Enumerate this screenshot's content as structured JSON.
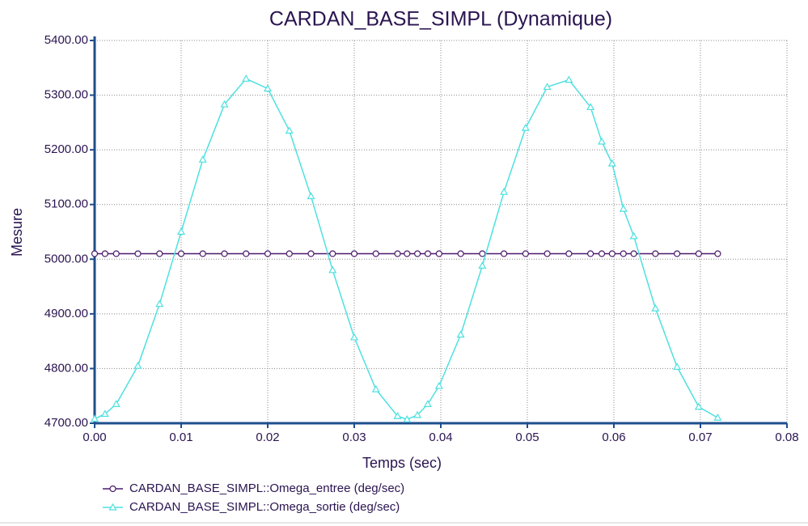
{
  "chart_data": {
    "type": "line",
    "title": "CARDAN_BASE_SIMPL (Dynamique)",
    "x_label": "Temps (sec)",
    "y_label": "Mesure",
    "x": [
      0,
      0.0012,
      0.0025,
      0.005,
      0.0075,
      0.01,
      0.0125,
      0.015,
      0.0175,
      0.02,
      0.0225,
      0.025,
      0.0275,
      0.03,
      0.0325,
      0.035,
      0.0361,
      0.0373,
      0.0385,
      0.0398,
      0.0423,
      0.0448,
      0.0473,
      0.0498,
      0.0523,
      0.0548,
      0.0573,
      0.0586,
      0.0598,
      0.0611,
      0.0623,
      0.0648,
      0.0673,
      0.0698,
      0.072
    ],
    "series": [
      {
        "name": "CARDAN_BASE_SIMPL::Omega_entree (deg/sec)",
        "color": "#4b1a6b",
        "marker": "circle",
        "values": [
          5010,
          5010,
          5010,
          5010,
          5010,
          5010,
          5010,
          5010,
          5010,
          5010,
          5010,
          5010,
          5010,
          5010,
          5010,
          5010,
          5010,
          5010,
          5010,
          5010,
          5010,
          5010,
          5010,
          5010,
          5010,
          5010,
          5010,
          5010,
          5010,
          5010,
          5010,
          5010,
          5010,
          5010,
          5010
        ]
      },
      {
        "name": "CARDAN_BASE_SIMPL::Omega_sortie (deg/sec)",
        "color": "#4fe0e0",
        "marker": "triangle",
        "values": [
          4708,
          4717,
          4735,
          4805,
          4918,
          5050,
          5182,
          5283,
          5330,
          5312,
          5235,
          5115,
          4980,
          4857,
          4762,
          4713,
          4707,
          4715,
          4735,
          4768,
          4862,
          4988,
          5123,
          5240,
          5315,
          5328,
          5278,
          5215,
          5175,
          5092,
          5042,
          4910,
          4803,
          4730,
          4710
        ]
      }
    ],
    "xlim": [
      0,
      0.08
    ],
    "xticks": [
      {
        "value": 0,
        "label": "0.00"
      },
      {
        "value": 0.01,
        "label": "0.01"
      },
      {
        "value": 0.02,
        "label": "0.02"
      },
      {
        "value": 0.03,
        "label": "0.03"
      },
      {
        "value": 0.04,
        "label": "0.04"
      },
      {
        "value": 0.05,
        "label": "0.05"
      },
      {
        "value": 0.06,
        "label": "0.06"
      },
      {
        "value": 0.07,
        "label": "0.07"
      },
      {
        "value": 0.08,
        "label": "0.08"
      }
    ],
    "ylim": [
      4700,
      5400
    ],
    "yticks": [
      {
        "value": 4700,
        "label": "4700.00"
      },
      {
        "value": 4800,
        "label": "4800.00"
      },
      {
        "value": 4900,
        "label": "4900.00"
      },
      {
        "value": 5000,
        "label": "5000.00"
      },
      {
        "value": 5100,
        "label": "5100.00"
      },
      {
        "value": 5200,
        "label": "5200.00"
      },
      {
        "value": 5300,
        "label": "5300.00"
      },
      {
        "value": 5400,
        "label": "5400.00"
      }
    ],
    "grid": true
  }
}
